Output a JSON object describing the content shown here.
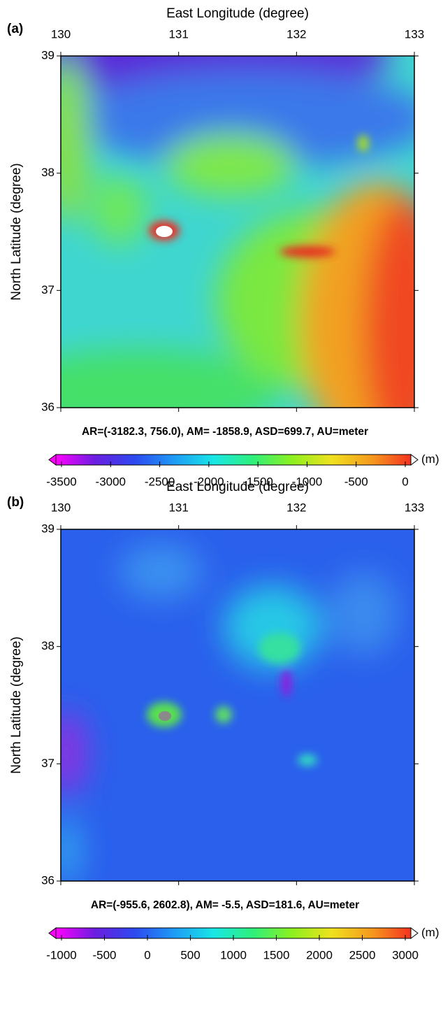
{
  "chart_data": [
    {
      "type": "heatmap",
      "panel_label": "(a)",
      "xlabel": "East Longitude (degree)",
      "ylabel": "North Latitude (degree)",
      "xlim": [
        130,
        133
      ],
      "xticks": [
        130,
        131,
        132,
        133
      ],
      "ylim": [
        36,
        39
      ],
      "yticks": [
        36,
        37,
        38,
        39
      ],
      "stats": "AR=(-3182.3, 756.0), AM= -1858.9, ASD=699.7, AU=meter",
      "colorbar": {
        "label": "(m)",
        "lim": [
          -3500,
          0
        ],
        "ticks": [
          -3500,
          -3000,
          -2500,
          -2000,
          -1500,
          -1000,
          -500,
          0
        ],
        "colors": [
          "#ff00ff",
          "#6a1ee0",
          "#2d49f0",
          "#1e9bf5",
          "#19e6e6",
          "#2ef07a",
          "#8ef01e",
          "#f0e11e",
          "#f59a1e",
          "#f5321e"
        ]
      }
    },
    {
      "type": "heatmap",
      "panel_label": "(b)",
      "xlabel": "East Longitude (degree)",
      "ylabel": "North Latitude (degree)",
      "xlim": [
        130,
        133
      ],
      "xticks": [
        130,
        131,
        132,
        133
      ],
      "ylim": [
        36,
        39
      ],
      "yticks": [
        36,
        37,
        38,
        39
      ],
      "stats": "AR=(-955.6, 2602.8), AM= -5.5, ASD=181.6, AU=meter",
      "colorbar": {
        "label": "(m)",
        "lim": [
          -1000,
          3000
        ],
        "ticks": [
          -1000,
          -500,
          0,
          500,
          1000,
          1500,
          2000,
          2500,
          3000
        ],
        "colors": [
          "#ff00ff",
          "#6a1ee0",
          "#2d49f0",
          "#1e9bf5",
          "#19e6e6",
          "#2ef07a",
          "#8ef01e",
          "#f0e11e",
          "#f59a1e",
          "#f5321e"
        ]
      }
    }
  ]
}
